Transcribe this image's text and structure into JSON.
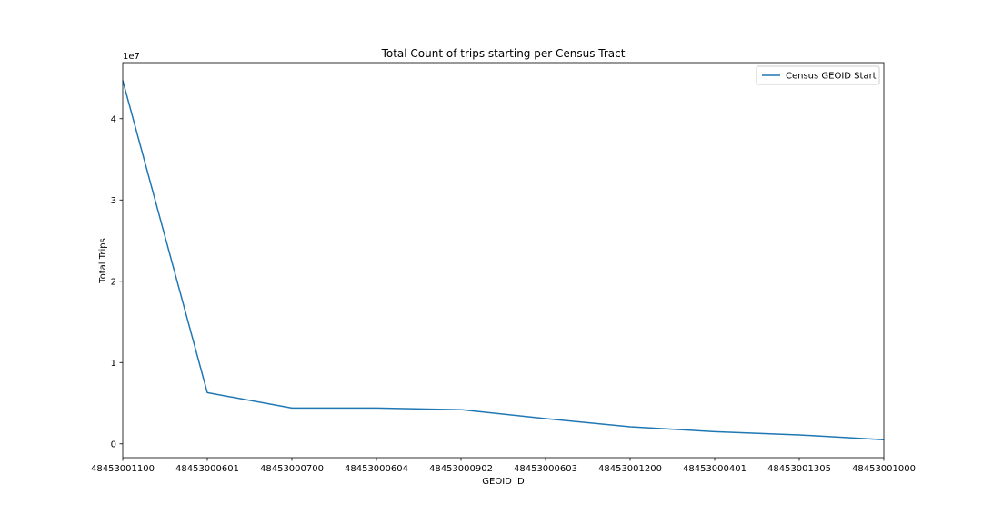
{
  "chart_data": {
    "type": "line",
    "title": "Total Count of trips starting per Census Tract",
    "xlabel": "GEOID ID",
    "ylabel": "Total Trips",
    "y_offset_label": "1e7",
    "categories": [
      "48453001100",
      "48453000601",
      "48453000700",
      "48453000604",
      "48453000902",
      "48453000603",
      "48453001200",
      "48453000401",
      "48453001305",
      "48453001000"
    ],
    "series": [
      {
        "name": "Census GEOID Start",
        "color": "#1f77b4",
        "values": [
          44700000,
          6300000,
          4400000,
          4400000,
          4200000,
          3100000,
          2100000,
          1500000,
          1100000,
          500000
        ]
      }
    ],
    "y_ticks": [
      0,
      10000000,
      20000000,
      30000000,
      40000000
    ],
    "y_tick_labels": [
      "0",
      "1",
      "2",
      "3",
      "4"
    ],
    "ylim": [
      -1700000,
      46900000
    ],
    "grid": false,
    "legend_position": "top-right"
  }
}
